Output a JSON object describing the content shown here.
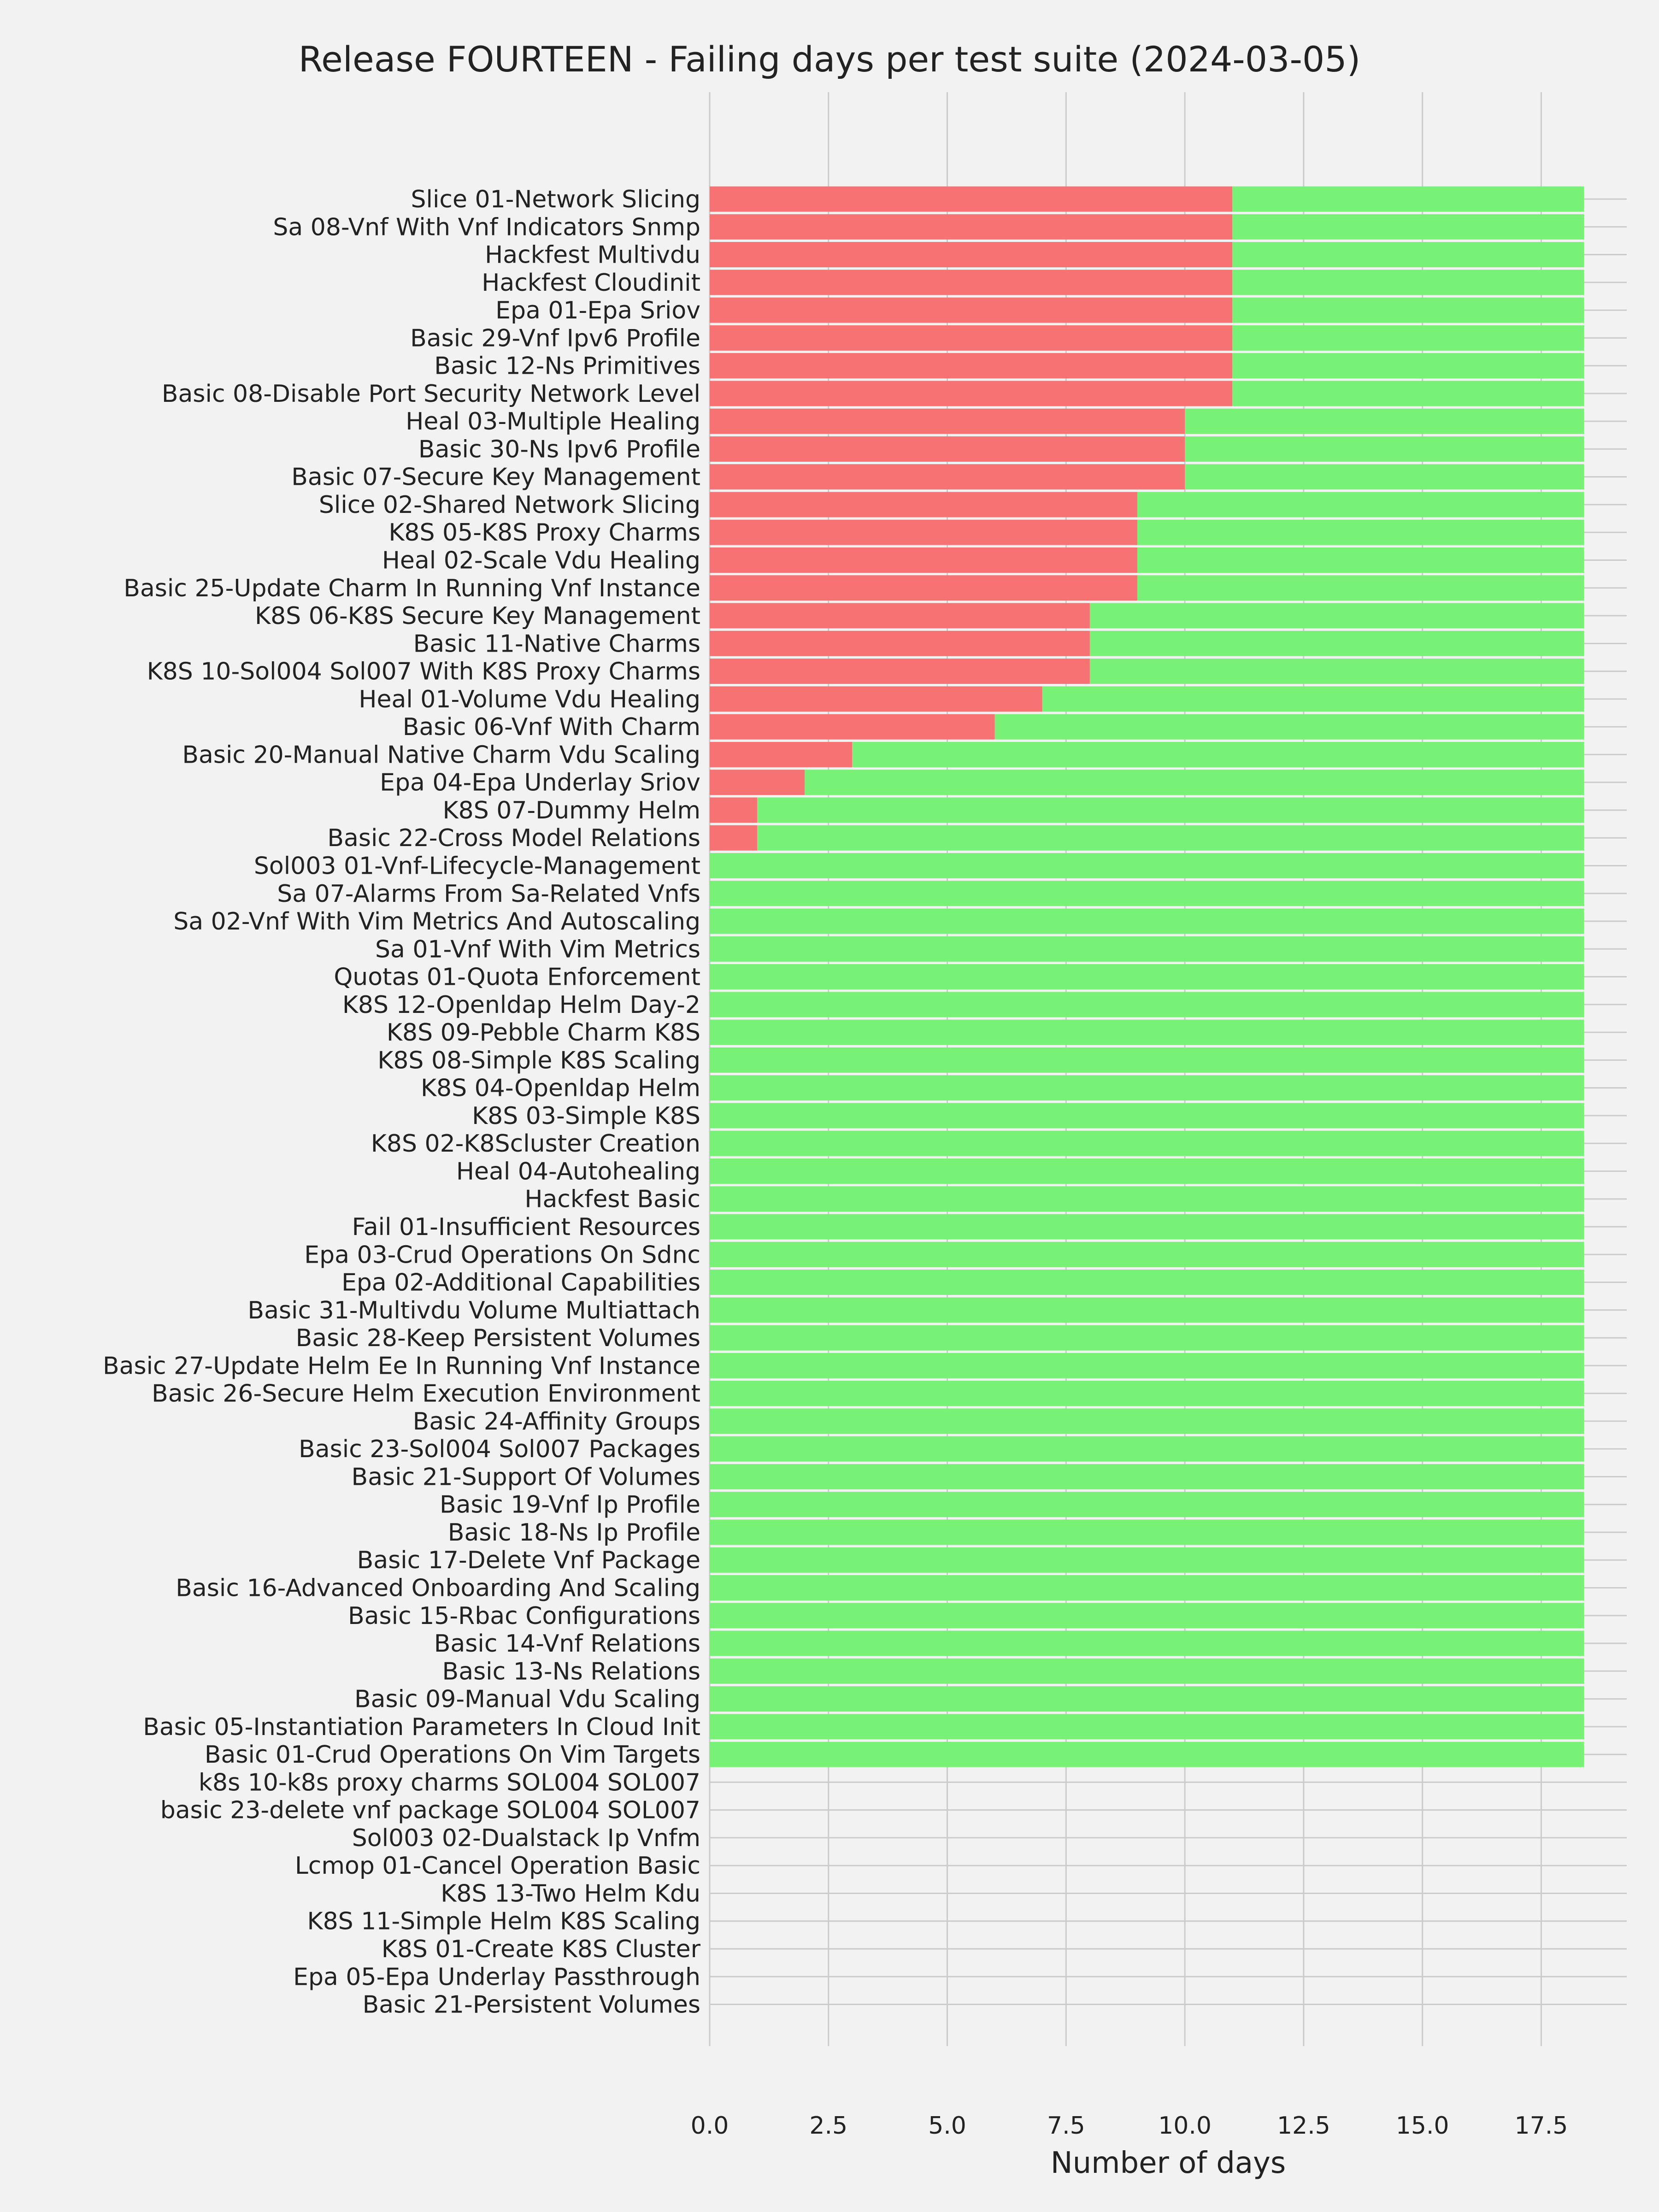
{
  "chart_data": {
    "type": "bar",
    "orientation": "horizontal",
    "stacked": true,
    "title": "Release FOURTEEN - Failing days per test suite (2024-03-05)",
    "xlabel": "Number of days",
    "ylabel": "",
    "xlim": [
      0,
      19.3
    ],
    "xticks": [
      0,
      2.5,
      5,
      7.5,
      10,
      12.5,
      15,
      17.5
    ],
    "xtick_labels": [
      "0.0",
      "2.5",
      "5.0",
      "7.5",
      "10.0",
      "12.5",
      "15.0",
      "17.5"
    ],
    "grid": true,
    "colors": {
      "failing": "#f77272",
      "passing": "#77f277",
      "background": "#f2f2f2",
      "grid": "#cbcbcb"
    },
    "categories": [
      "Slice 01-Network Slicing",
      "Sa 08-Vnf With Vnf Indicators Snmp",
      "Hackfest Multivdu",
      "Hackfest Cloudinit",
      "Epa 01-Epa Sriov",
      "Basic 29-Vnf Ipv6 Profile",
      "Basic 12-Ns Primitives",
      "Basic 08-Disable Port Security Network Level",
      "Heal 03-Multiple Healing",
      "Basic 30-Ns Ipv6 Profile",
      "Basic 07-Secure Key Management",
      "Slice 02-Shared Network Slicing",
      "K8S 05-K8S Proxy Charms",
      "Heal 02-Scale Vdu Healing",
      "Basic 25-Update Charm In Running Vnf Instance",
      "K8S 06-K8S Secure Key Management",
      "Basic 11-Native Charms",
      "K8S 10-Sol004 Sol007 With K8S Proxy Charms",
      "Heal 01-Volume Vdu Healing",
      "Basic 06-Vnf With Charm",
      "Basic 20-Manual Native Charm Vdu Scaling",
      "Epa 04-Epa Underlay Sriov",
      "K8S 07-Dummy Helm",
      "Basic 22-Cross Model Relations",
      "Sol003 01-Vnf-Lifecycle-Management",
      "Sa 07-Alarms From Sa-Related Vnfs",
      "Sa 02-Vnf With Vim Metrics And Autoscaling",
      "Sa 01-Vnf With Vim Metrics",
      "Quotas 01-Quota Enforcement",
      "K8S 12-Openldap Helm Day-2",
      "K8S 09-Pebble Charm K8S",
      "K8S 08-Simple K8S Scaling",
      "K8S 04-Openldap Helm",
      "K8S 03-Simple K8S",
      "K8S 02-K8Scluster Creation",
      "Heal 04-Autohealing",
      "Hackfest Basic",
      "Fail 01-Insufficient Resources",
      "Epa 03-Crud Operations On Sdnc",
      "Epa 02-Additional Capabilities",
      "Basic 31-Multivdu Volume Multiattach",
      "Basic 28-Keep Persistent Volumes",
      "Basic 27-Update Helm Ee In Running Vnf Instance",
      "Basic 26-Secure Helm Execution Environment",
      "Basic 24-Affinity Groups",
      "Basic 23-Sol004 Sol007 Packages",
      "Basic 21-Support Of Volumes",
      "Basic 19-Vnf Ip Profile",
      "Basic 18-Ns Ip Profile",
      "Basic 17-Delete Vnf Package",
      "Basic 16-Advanced Onboarding And Scaling",
      "Basic 15-Rbac Configurations",
      "Basic 14-Vnf Relations",
      "Basic 13-Ns Relations",
      "Basic 09-Manual Vdu Scaling",
      "Basic 05-Instantiation Parameters In Cloud Init",
      "Basic 01-Crud Operations On Vim Targets",
      "k8s 10-k8s proxy charms SOL004 SOL007",
      "basic 23-delete vnf package SOL004 SOL007",
      "Sol003 02-Dualstack Ip Vnfm",
      "Lcmop 01-Cancel Operation Basic",
      "K8S 13-Two Helm Kdu",
      "K8S 11-Simple Helm K8S Scaling",
      "K8S 01-Create K8S Cluster",
      "Epa 05-Epa Underlay Passthrough",
      "Basic 21-Persistent Volumes"
    ],
    "series": [
      {
        "color": "#f77272",
        "values": [
          11,
          11,
          11,
          11,
          11,
          11,
          11,
          11,
          10,
          10,
          10,
          9,
          9,
          9,
          9,
          8,
          8,
          8,
          7,
          6,
          3,
          2,
          1,
          1,
          0,
          0,
          0,
          0,
          0,
          0,
          0,
          0,
          0,
          0,
          0,
          0,
          0,
          0,
          0,
          0,
          0,
          0,
          0,
          0,
          0,
          0,
          0,
          0,
          0,
          0,
          0,
          0,
          0,
          0,
          0,
          0,
          0,
          0,
          0,
          0,
          0,
          0,
          0,
          0,
          0,
          0
        ]
      },
      {
        "color": "#77f277",
        "values": [
          7.4,
          7.4,
          7.4,
          7.4,
          7.4,
          7.4,
          7.4,
          7.4,
          8.4,
          8.4,
          8.4,
          9.4,
          9.4,
          9.4,
          9.4,
          10.4,
          10.4,
          10.4,
          11.4,
          12.4,
          15.4,
          16.4,
          17.4,
          17.4,
          18.4,
          18.4,
          18.4,
          18.4,
          18.4,
          18.4,
          18.4,
          18.4,
          18.4,
          18.4,
          18.4,
          18.4,
          18.4,
          18.4,
          18.4,
          18.4,
          18.4,
          18.4,
          18.4,
          18.4,
          18.4,
          18.4,
          18.4,
          18.4,
          18.4,
          18.4,
          18.4,
          18.4,
          18.4,
          18.4,
          18.4,
          18.4,
          18.4,
          0,
          0,
          0,
          0,
          0,
          0,
          0,
          0,
          0
        ]
      }
    ]
  }
}
